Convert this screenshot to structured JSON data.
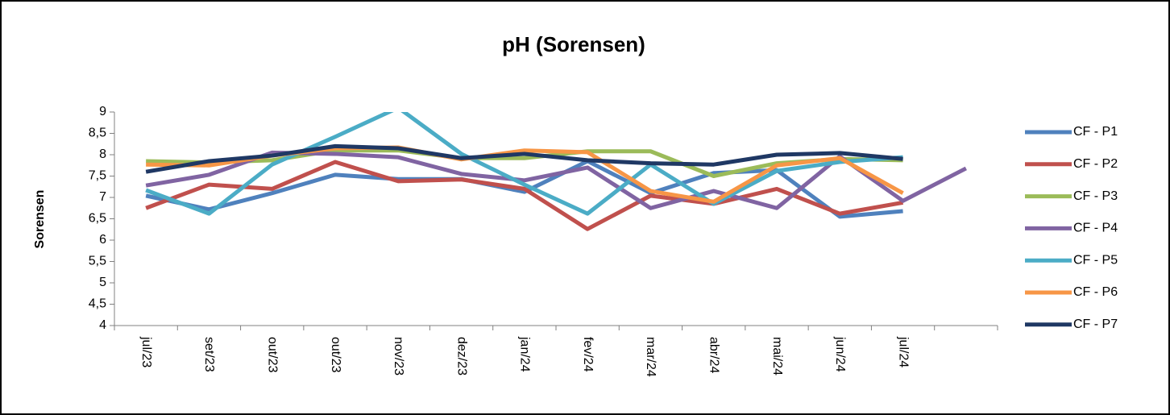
{
  "chart_data": {
    "type": "line",
    "title": "pH (Sorensen)",
    "y_label": "Sorensen",
    "categories": [
      "jul/23",
      "set/23",
      "out/23",
      "out/23",
      "nov/23",
      "dez/23",
      "jan/24",
      "fev/24",
      "mar/24",
      "abr/24",
      "mai/24",
      "jun/24",
      "jul/24",
      null
    ],
    "ylim": [
      4,
      9
    ],
    "yticks": [
      4,
      {
        "value": 4.5,
        "label": "4,5"
      },
      5,
      {
        "value": 5.5,
        "label": "5,5"
      },
      6,
      {
        "value": 6.5,
        "label": "6,5"
      },
      7,
      {
        "value": 7.5,
        "label": "7,5"
      },
      8,
      {
        "value": 8.5,
        "label": "8,5"
      },
      9
    ],
    "grid": false,
    "legend": "right",
    "series": [
      {
        "name": "CF - P1",
        "color": "#4f81bd",
        "values": [
          7.04,
          6.72,
          7.1,
          7.53,
          7.43,
          7.43,
          7.13,
          7.85,
          7.1,
          7.57,
          7.64,
          6.55,
          6.68,
          null
        ]
      },
      {
        "name": "CF - P2",
        "color": "#c0504d",
        "values": [
          6.75,
          7.3,
          7.2,
          7.83,
          7.38,
          7.42,
          7.2,
          6.26,
          7.04,
          6.85,
          7.2,
          6.62,
          6.88,
          null
        ]
      },
      {
        "name": "CF - P3",
        "color": "#9bbb59",
        "values": [
          7.85,
          7.82,
          7.87,
          8.1,
          8.1,
          7.92,
          7.92,
          8.08,
          8.08,
          7.5,
          7.8,
          7.9,
          7.87,
          null
        ]
      },
      {
        "name": "CF - P4",
        "color": "#8064a2",
        "values": [
          7.28,
          7.53,
          8.05,
          8.02,
          7.94,
          7.55,
          7.4,
          7.7,
          6.75,
          7.15,
          6.75,
          7.96,
          6.92,
          7.68
        ]
      },
      {
        "name": "CF - P5",
        "color": "#4bacc6",
        "values": [
          7.17,
          6.62,
          7.77,
          8.42,
          9.1,
          8.02,
          7.3,
          6.62,
          7.77,
          6.85,
          7.62,
          7.83,
          7.94,
          null
        ]
      },
      {
        "name": "CF - P6",
        "color": "#f79646",
        "values": [
          7.77,
          7.75,
          7.98,
          8.15,
          8.17,
          7.89,
          8.1,
          8.06,
          7.15,
          6.9,
          7.75,
          7.92,
          7.1,
          null
        ]
      },
      {
        "name": "CF - P7",
        "color": "#1f3864",
        "values": [
          7.6,
          7.85,
          7.98,
          8.2,
          8.15,
          7.92,
          8.02,
          7.87,
          7.8,
          7.77,
          8.0,
          8.04,
          7.9,
          null
        ]
      }
    ]
  }
}
